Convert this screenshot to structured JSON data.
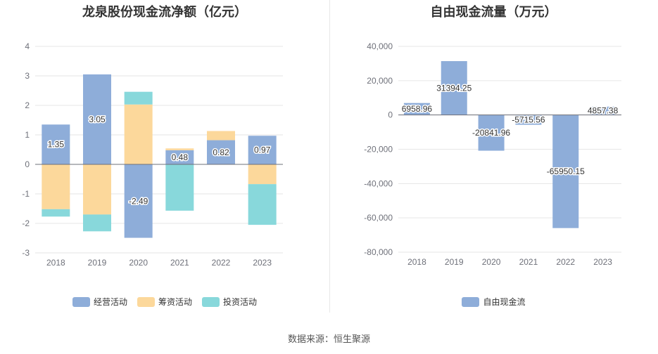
{
  "source": "数据来源：恒生聚源",
  "chart_data": [
    {
      "type": "bar",
      "stacked": true,
      "title": "龙泉股份现金流净额（亿元）",
      "categories": [
        "2018",
        "2019",
        "2020",
        "2021",
        "2022",
        "2023"
      ],
      "ylim": [
        -3,
        4
      ],
      "yticks": [
        -3,
        -2,
        -1,
        0,
        1,
        2,
        3,
        4
      ],
      "grid": true,
      "legend_position": "bottom",
      "series": [
        {
          "name": "经营活动",
          "color": "#8eadd9",
          "values": [
            1.35,
            3.05,
            -2.49,
            0.48,
            0.82,
            0.97
          ],
          "labels": [
            "1.35",
            "3.05",
            "-2.49",
            "0.48",
            "0.82",
            "0.97"
          ]
        },
        {
          "name": "筹资活动",
          "color": "#fcd89b",
          "values": [
            -1.52,
            -1.7,
            2.03,
            0.06,
            0.31,
            -0.67
          ]
        },
        {
          "name": "投资活动",
          "color": "#88d8db",
          "values": [
            -0.25,
            -0.57,
            0.43,
            -1.57,
            0.0,
            -1.38
          ]
        }
      ]
    },
    {
      "type": "bar",
      "title": "自由现金流量（万元）",
      "categories": [
        "2018",
        "2019",
        "2020",
        "2021",
        "2022",
        "2023"
      ],
      "ylim": [
        -80000,
        40000
      ],
      "yticks": [
        -80000,
        -60000,
        -40000,
        -20000,
        0,
        20000,
        40000
      ],
      "ytick_labels": [
        "-80,000",
        "-60,000",
        "-40,000",
        "-20,000",
        "0",
        "20,000",
        "40,000"
      ],
      "grid": true,
      "legend_position": "bottom",
      "series": [
        {
          "name": "自由现金流",
          "color": "#8eadd9",
          "values": [
            6958.96,
            31394.25,
            -20841.96,
            -5715.56,
            -65950.15,
            4857.38
          ],
          "labels": [
            "6958.96",
            "31394.25",
            "-20841.96",
            "-5715.56",
            "-65950.15",
            "4857.38"
          ]
        }
      ]
    }
  ]
}
